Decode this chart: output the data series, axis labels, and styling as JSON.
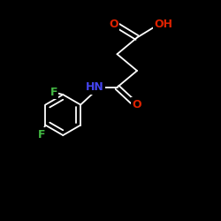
{
  "background_color": "#000000",
  "bond_color": "#ffffff",
  "atom_colors": {
    "O": "#dd2200",
    "N": "#4444ee",
    "F": "#44bb44",
    "C": "#ffffff"
  },
  "font_size_main": 9,
  "figsize": [
    2.5,
    2.5
  ],
  "dpi": 100
}
